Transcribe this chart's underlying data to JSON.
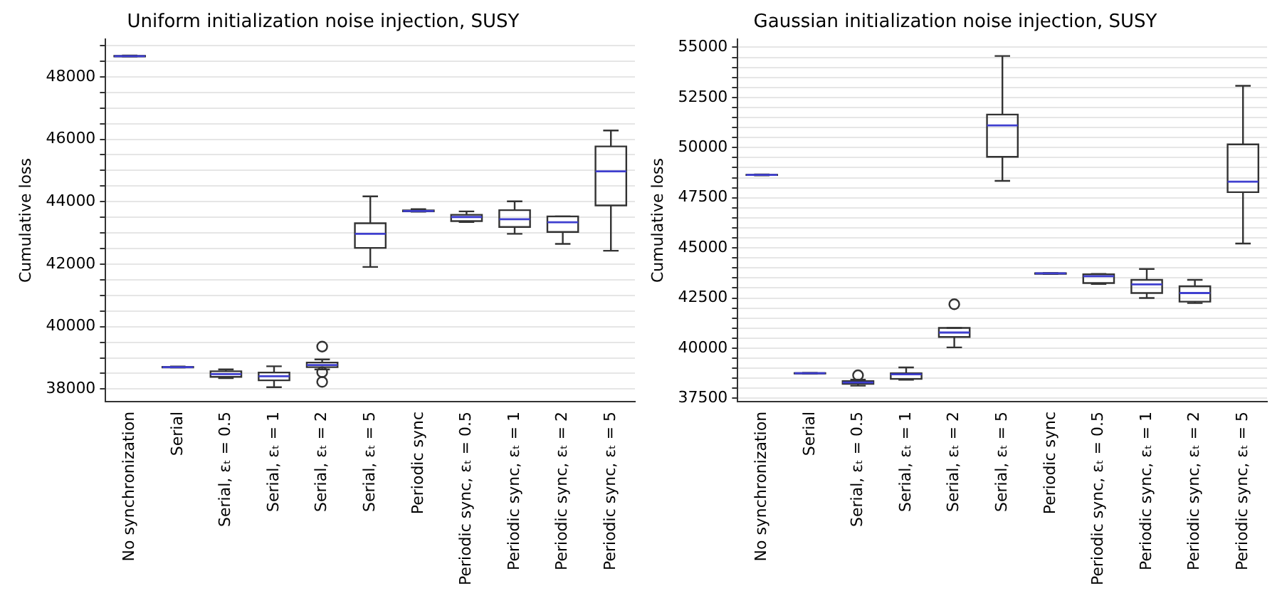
{
  "chart_data": [
    {
      "type": "box",
      "title": "Uniform initialization noise injection, SUSY",
      "ylabel": "Cumulative loss",
      "categories": [
        "No synchronization",
        "Serial",
        "Serial, εₜ = 0.5",
        "Serial, εₜ = 1",
        "Serial, εₜ = 2",
        "Serial, εₜ = 5",
        "Periodic sync",
        "Periodic sync, εₜ = 0.5",
        "Periodic sync, εₜ = 1",
        "Periodic sync, εₜ = 2",
        "Periodic sync, εₜ = 5"
      ],
      "series": [
        {
          "color": "#333333",
          "boxes": [
            {
              "low": 48650,
              "q1": 48650,
              "median": 48660,
              "q3": 48670,
              "high": 48680
            },
            {
              "low": 38690,
              "q1": 38690,
              "median": 38700,
              "q3": 38710,
              "high": 38720
            },
            {
              "low": 38350,
              "q1": 38390,
              "median": 38480,
              "q3": 38570,
              "high": 38630
            },
            {
              "low": 38060,
              "q1": 38280,
              "median": 38410,
              "q3": 38530,
              "high": 38730
            },
            {
              "low": 38630,
              "q1": 38700,
              "median": 38770,
              "q3": 38850,
              "high": 38950,
              "outliers": [
                39360,
                38540,
                38230
              ]
            },
            {
              "low": 41910,
              "q1": 42520,
              "median": 42970,
              "q3": 43310,
              "high": 44170
            },
            {
              "low": 43680,
              "q1": 43690,
              "median": 43700,
              "q3": 43720,
              "high": 43760
            },
            {
              "low": 43350,
              "q1": 43380,
              "median": 43510,
              "q3": 43580,
              "high": 43690
            },
            {
              "low": 42970,
              "q1": 43190,
              "median": 43440,
              "q3": 43730,
              "high": 44010
            },
            {
              "low": 42650,
              "q1": 43030,
              "median": 43340,
              "q3": 43530,
              "high": 43530
            },
            {
              "low": 42430,
              "q1": 43880,
              "median": 44970,
              "q3": 45770,
              "high": 46280
            }
          ]
        }
      ],
      "ylim": [
        37600,
        49200
      ],
      "yticks": [
        {
          "value": 38000,
          "label": "38000"
        },
        {
          "value": 38500,
          "label": null
        },
        {
          "value": 39000,
          "label": null
        },
        {
          "value": 39500,
          "label": null
        },
        {
          "value": 40000,
          "label": "40000"
        },
        {
          "value": 40500,
          "label": null
        },
        {
          "value": 41000,
          "label": null
        },
        {
          "value": 41500,
          "label": null
        },
        {
          "value": 42000,
          "label": "42000"
        },
        {
          "value": 42500,
          "label": null
        },
        {
          "value": 43000,
          "label": null
        },
        {
          "value": 43500,
          "label": null
        },
        {
          "value": 44000,
          "label": "44000"
        },
        {
          "value": 44500,
          "label": null
        },
        {
          "value": 45000,
          "label": null
        },
        {
          "value": 45500,
          "label": null
        },
        {
          "value": 46000,
          "label": "46000"
        },
        {
          "value": 46500,
          "label": null
        },
        {
          "value": 47000,
          "label": null
        },
        {
          "value": 47500,
          "label": null
        },
        {
          "value": 48000,
          "label": "48000"
        },
        {
          "value": 48500,
          "label": null
        },
        {
          "value": 49000,
          "label": null
        }
      ],
      "grid": "y",
      "legend": false
    },
    {
      "type": "box",
      "title": "Gaussian initialization noise injection, SUSY",
      "ylabel": "Cumulative loss",
      "categories": [
        "No synchronization",
        "Serial",
        "Serial, εₜ = 0.5",
        "Serial, εₜ = 1",
        "Serial, εₜ = 2",
        "Serial, εₜ = 5",
        "Periodic sync",
        "Periodic sync, εₜ = 0.5",
        "Periodic sync, εₜ = 1",
        "Periodic sync, εₜ = 2",
        "Periodic sync, εₜ = 5"
      ],
      "series": [
        {
          "color": "#333333",
          "boxes": [
            {
              "low": 48620,
              "q1": 48630,
              "median": 48640,
              "q3": 48650,
              "high": 48660
            },
            {
              "low": 38730,
              "q1": 38740,
              "median": 38750,
              "q3": 38760,
              "high": 38770
            },
            {
              "low": 38130,
              "q1": 38220,
              "median": 38290,
              "q3": 38360,
              "high": 38430,
              "outliers": [
                38650
              ]
            },
            {
              "low": 38430,
              "q1": 38470,
              "median": 38700,
              "q3": 38750,
              "high": 39040
            },
            {
              "low": 40040,
              "q1": 40560,
              "median": 40780,
              "q3": 41010,
              "high": 41010,
              "outliers": [
                42190
              ]
            },
            {
              "low": 48340,
              "q1": 49540,
              "median": 51110,
              "q3": 51650,
              "high": 54570
            },
            {
              "low": 43700,
              "q1": 43710,
              "median": 43730,
              "q3": 43740,
              "high": 43750
            },
            {
              "low": 43200,
              "q1": 43250,
              "median": 43590,
              "q3": 43680,
              "high": 43700
            },
            {
              "low": 42500,
              "q1": 42750,
              "median": 43180,
              "q3": 43410,
              "high": 43950
            },
            {
              "low": 42250,
              "q1": 42320,
              "median": 42750,
              "q3": 43090,
              "high": 43410
            },
            {
              "low": 45220,
              "q1": 47780,
              "median": 48300,
              "q3": 50160,
              "high": 53080
            }
          ]
        }
      ],
      "ylim": [
        37340,
        55400
      ],
      "yticks": [
        {
          "value": 37500,
          "label": "37500"
        },
        {
          "value": 38000,
          "label": null
        },
        {
          "value": 38500,
          "label": null
        },
        {
          "value": 39000,
          "label": null
        },
        {
          "value": 39500,
          "label": null
        },
        {
          "value": 40000,
          "label": "40000"
        },
        {
          "value": 40500,
          "label": null
        },
        {
          "value": 41000,
          "label": null
        },
        {
          "value": 41500,
          "label": null
        },
        {
          "value": 42000,
          "label": null
        },
        {
          "value": 42500,
          "label": "42500"
        },
        {
          "value": 43000,
          "label": null
        },
        {
          "value": 43500,
          "label": null
        },
        {
          "value": 44000,
          "label": null
        },
        {
          "value": 44500,
          "label": null
        },
        {
          "value": 45000,
          "label": "45000"
        },
        {
          "value": 45500,
          "label": null
        },
        {
          "value": 46000,
          "label": null
        },
        {
          "value": 46500,
          "label": null
        },
        {
          "value": 47000,
          "label": null
        },
        {
          "value": 47500,
          "label": "47500"
        },
        {
          "value": 48000,
          "label": null
        },
        {
          "value": 48500,
          "label": null
        },
        {
          "value": 49000,
          "label": null
        },
        {
          "value": 49500,
          "label": null
        },
        {
          "value": 50000,
          "label": "50000"
        },
        {
          "value": 50500,
          "label": null
        },
        {
          "value": 51000,
          "label": null
        },
        {
          "value": 51500,
          "label": null
        },
        {
          "value": 52000,
          "label": null
        },
        {
          "value": 52500,
          "label": "52500"
        },
        {
          "value": 53000,
          "label": null
        },
        {
          "value": 53500,
          "label": null
        },
        {
          "value": 54000,
          "label": null
        },
        {
          "value": 54500,
          "label": null
        },
        {
          "value": 55000,
          "label": "55000"
        }
      ],
      "grid": "y",
      "legend": false
    }
  ]
}
